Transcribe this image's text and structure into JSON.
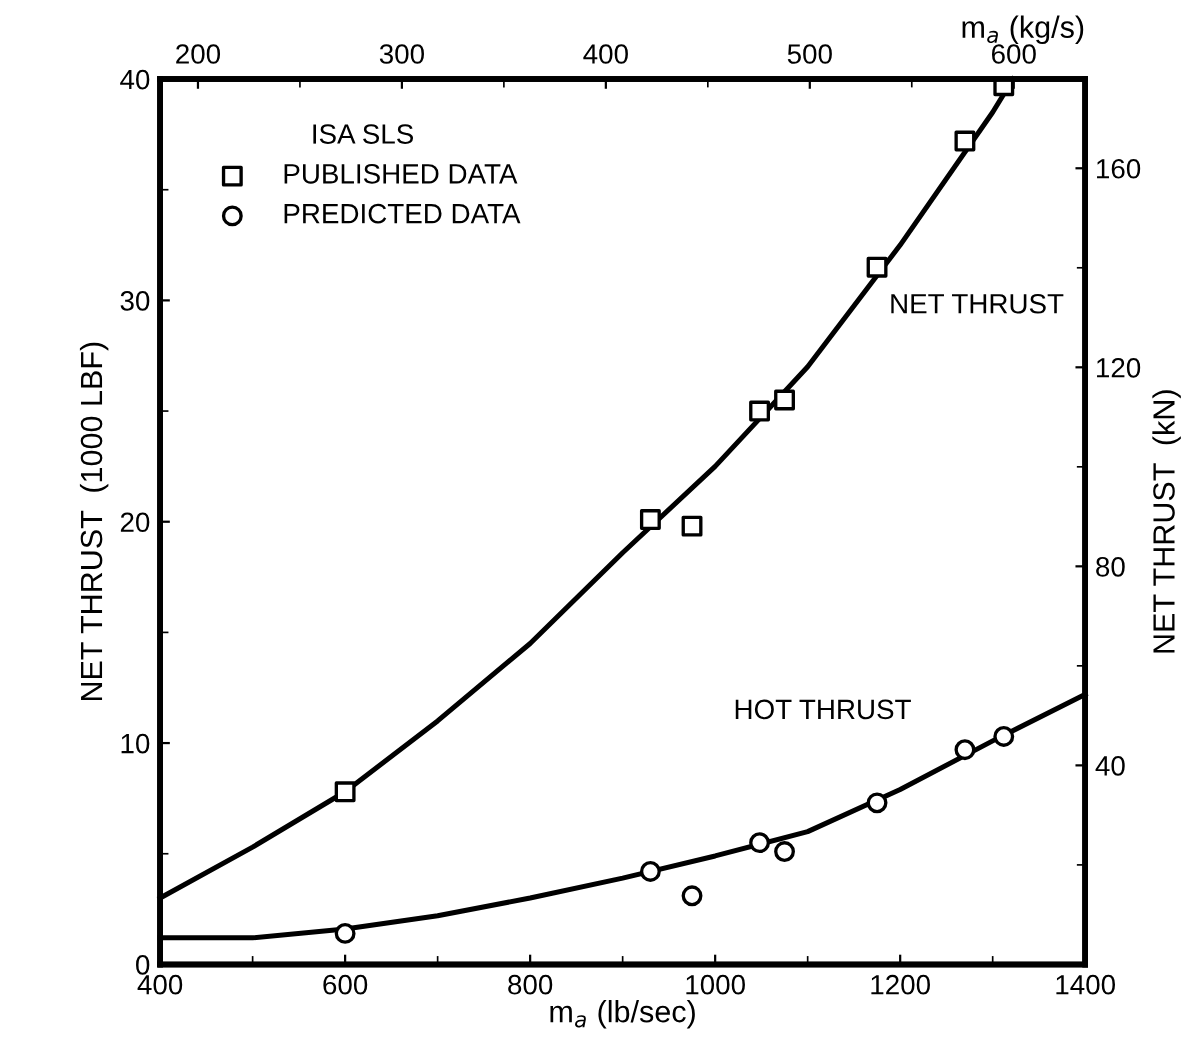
{
  "chart_data": {
    "type": "scatter",
    "xlabel": "m$_{a}$ (lb/sec)",
    "ylabel": "NET THRUST  (1000 LBF)",
    "x2label": "m$_{a}$ (kg/s)",
    "y2label": "NET THRUST  (kN)",
    "legend_title": "ISA SLS",
    "xlim": [
      400,
      1400
    ],
    "xticks": [
      400,
      600,
      800,
      1000,
      1200,
      1400
    ],
    "ylim": [
      0,
      40
    ],
    "yticks": [
      0,
      10,
      20,
      30,
      40
    ],
    "x2lim": [
      181.44,
      635.03
    ],
    "x2ticks": [
      200,
      300,
      400,
      500,
      600
    ],
    "y2lim": [
      0,
      177.93
    ],
    "y2ticks": [
      40,
      80,
      120,
      160
    ],
    "grid": false,
    "legend": "top left",
    "series": [
      {
        "name": "PUBLISHED DATA",
        "marker": "square",
        "color": "#000000",
        "x": [
          600,
          930,
          975,
          1048,
          1075,
          1175,
          1270,
          1312
        ],
        "values": [
          7.8,
          20.1,
          19.8,
          25.0,
          25.5,
          31.5,
          37.2,
          39.7
        ]
      },
      {
        "name": "PREDICTED DATA",
        "marker": "circle",
        "color": "#000000",
        "x": [
          600,
          930,
          975,
          1048,
          1075,
          1175,
          1270,
          1312
        ],
        "values": [
          1.4,
          4.2,
          3.1,
          5.5,
          5.1,
          7.3,
          9.7,
          10.3
        ]
      },
      {
        "name": "NET THRUST",
        "type": "line",
        "marker": "none",
        "color": "#000000",
        "x": [
          400,
          500,
          600,
          700,
          800,
          900,
          1000,
          1100,
          1200,
          1300,
          1322
        ],
        "values": [
          3.0,
          5.3,
          7.8,
          11.0,
          14.5,
          18.6,
          22.5,
          27.0,
          32.5,
          38.5,
          40.0
        ]
      },
      {
        "name": "HOT THRUST",
        "type": "line",
        "marker": "none",
        "color": "#000000",
        "x": [
          400,
          500,
          600,
          700,
          800,
          900,
          1000,
          1100,
          1200,
          1300,
          1400
        ],
        "values": [
          1.2,
          1.2,
          1.6,
          2.2,
          3.0,
          3.9,
          4.9,
          6.0,
          7.9,
          10.1,
          12.2
        ]
      }
    ]
  }
}
